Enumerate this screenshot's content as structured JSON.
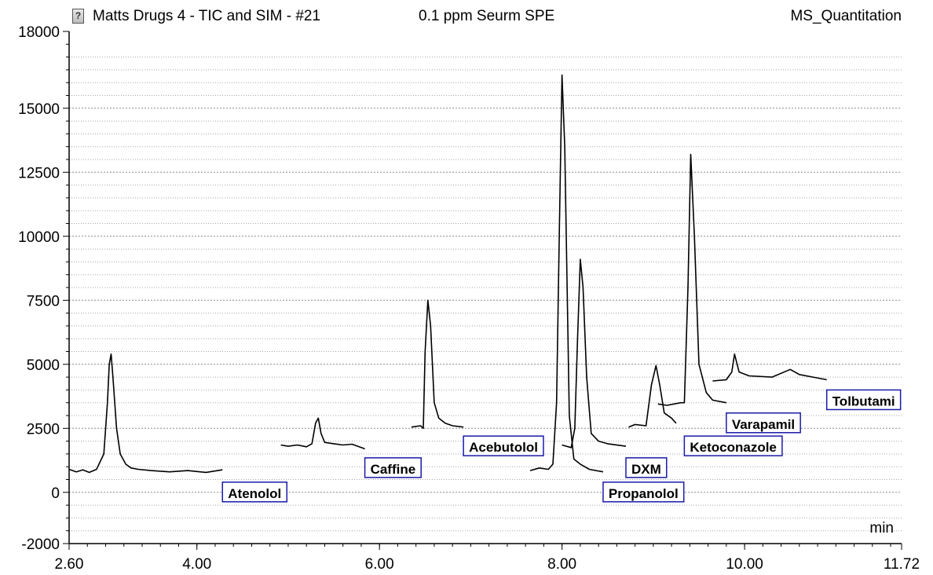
{
  "header": {
    "title": "Matts Drugs 4 - TIC and SIM - #21",
    "subtitle": "0.1 ppm Seurm SPE",
    "method": "MS_Quantitation",
    "icon": "document-icon"
  },
  "chart_data": {
    "type": "line",
    "title": "Matts Drugs 4 - TIC and SIM - #21",
    "xlabel": "min",
    "ylabel": "",
    "xlim": [
      2.6,
      11.72
    ],
    "ylim": [
      -2000,
      18000
    ],
    "x_ticks": [
      "2.60",
      "4.00",
      "6.00",
      "8.00",
      "10.00",
      "11.72"
    ],
    "y_ticks": [
      "-2000",
      "0",
      "2500",
      "5000",
      "7500",
      "10000",
      "12500",
      "15000",
      "18000"
    ],
    "grid": "horizontal dotted",
    "series": [
      {
        "x": [
          2.6,
          2.68,
          2.75,
          2.82,
          2.9,
          2.98,
          3.02,
          3.04,
          3.06,
          3.08,
          3.12,
          3.16,
          3.22,
          3.28,
          3.36,
          3.5,
          3.7,
          3.9,
          4.1,
          4.28
        ],
        "y": [
          900,
          800,
          880,
          780,
          900,
          1500,
          3500,
          5000,
          5400,
          4500,
          2500,
          1500,
          1100,
          950,
          900,
          850,
          800,
          850,
          780,
          880
        ]
      },
      {
        "x": [
          4.92,
          5.0,
          5.1,
          5.2,
          5.26,
          5.3,
          5.33,
          5.36,
          5.4,
          5.5,
          5.6,
          5.7,
          5.84
        ],
        "y": [
          1850,
          1800,
          1850,
          1780,
          1900,
          2700,
          2900,
          2300,
          1950,
          1900,
          1850,
          1880,
          1700
        ]
      },
      {
        "x": [
          6.35,
          6.45,
          6.48,
          6.5,
          6.53,
          6.56,
          6.6,
          6.65,
          6.72,
          6.8,
          6.92
        ],
        "y": [
          2550,
          2600,
          2500,
          5500,
          7500,
          6500,
          3500,
          2900,
          2700,
          2600,
          2550
        ]
      },
      {
        "x": [
          7.65,
          7.75,
          7.85,
          7.9,
          7.94,
          7.97,
          8.0,
          8.03,
          8.08,
          8.13,
          8.2,
          8.3,
          8.45
        ],
        "y": [
          850,
          950,
          900,
          1100,
          3500,
          10000,
          16300,
          13500,
          3000,
          1300,
          1100,
          900,
          800
        ]
      },
      {
        "x": [
          8.0,
          8.1,
          8.14,
          8.17,
          8.2,
          8.23,
          8.27,
          8.32,
          8.4,
          8.5,
          8.7
        ],
        "y": [
          1850,
          1750,
          2500,
          6000,
          9100,
          8000,
          4500,
          2300,
          2000,
          1900,
          1800
        ]
      },
      {
        "x": [
          8.73,
          8.8,
          8.92,
          8.98,
          9.03,
          9.07,
          9.12,
          9.2,
          9.25
        ],
        "y": [
          2550,
          2650,
          2600,
          4200,
          4950,
          4200,
          3100,
          2900,
          2700
        ]
      },
      {
        "x": [
          9.05,
          9.15,
          9.3,
          9.34,
          9.38,
          9.41,
          9.45,
          9.5,
          9.58,
          9.65,
          9.8
        ],
        "y": [
          3450,
          3400,
          3500,
          3500,
          8000,
          13200,
          10000,
          5000,
          3900,
          3600,
          3500
        ]
      },
      {
        "x": [
          9.65,
          9.8,
          9.86,
          9.89,
          9.94,
          10.05,
          10.3,
          10.5,
          10.6,
          10.75,
          10.9
        ],
        "y": [
          4350,
          4400,
          4700,
          5400,
          4700,
          4550,
          4500,
          4800,
          4600,
          4500,
          4400
        ]
      }
    ],
    "labels": [
      {
        "text": "Atenolol",
        "x": 4.28,
        "y": 0
      },
      {
        "text": "Caffine",
        "x": 5.84,
        "y": 950
      },
      {
        "text": "Acebutolol",
        "x": 6.92,
        "y": 1800
      },
      {
        "text": "DXM",
        "x": 8.7,
        "y": 950
      },
      {
        "text": "Propanolol",
        "x": 8.45,
        "y": 0
      },
      {
        "text": "Ketoconazole",
        "x": 9.34,
        "y": 1800
      },
      {
        "text": "Varapamil",
        "x": 9.8,
        "y": 2700
      },
      {
        "text": "Tolbutami",
        "x": 10.9,
        "y": 3600
      }
    ]
  }
}
